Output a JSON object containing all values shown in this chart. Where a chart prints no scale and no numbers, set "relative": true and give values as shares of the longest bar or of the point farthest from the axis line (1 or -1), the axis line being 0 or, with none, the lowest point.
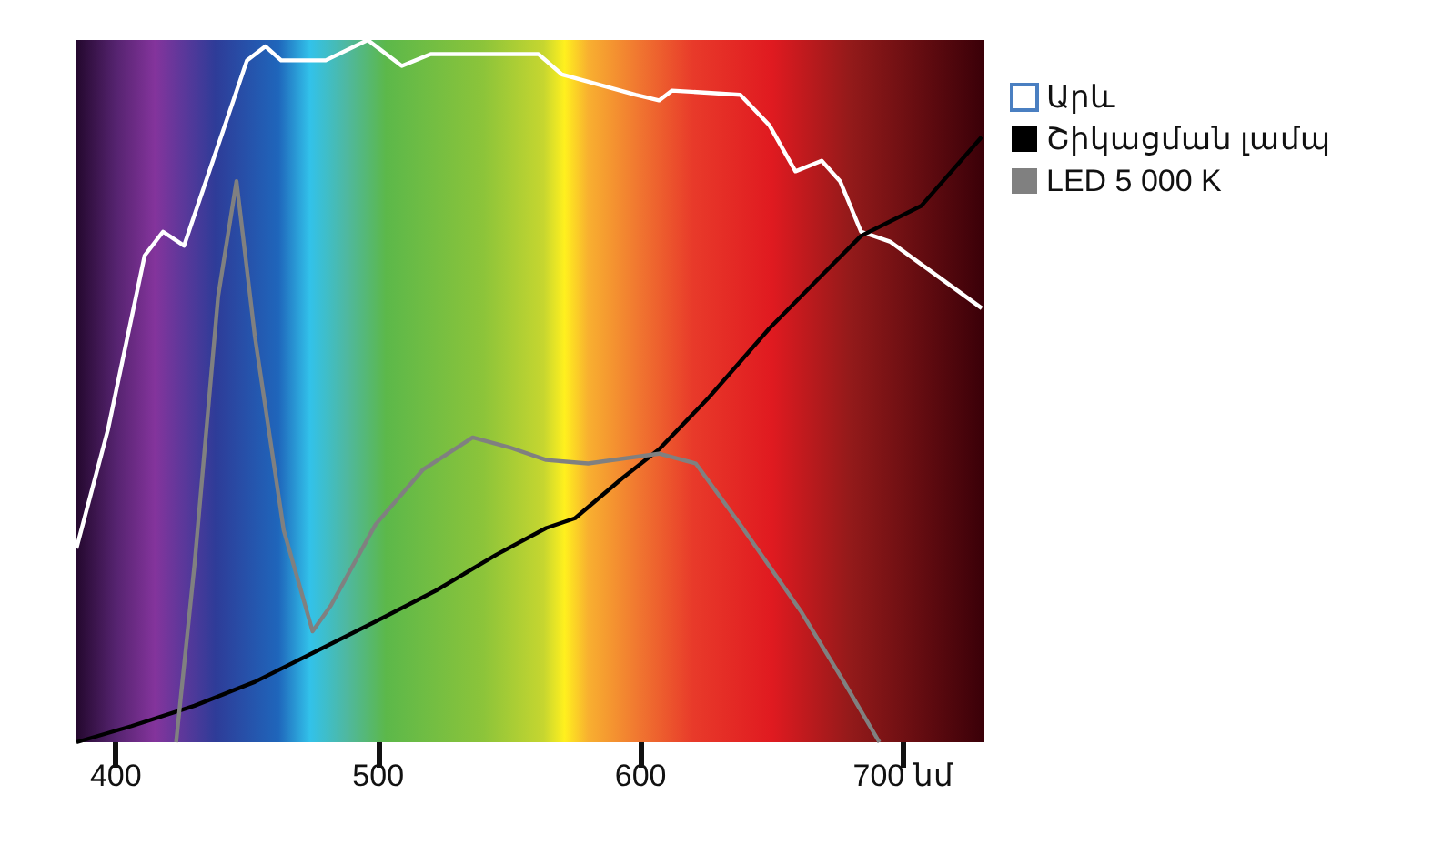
{
  "chart_data": {
    "type": "line",
    "relative": true,
    "xlim": [
      385,
      731
    ],
    "xticks": [
      400,
      500,
      600,
      {
        "value": 700,
        "label": "700 նմ"
      }
    ],
    "legend": "top right",
    "grid": false,
    "marker": "none",
    "line_style": "solid",
    "series": [
      {
        "name": "Արև",
        "color": "#ffffff",
        "x": [
          385,
          397,
          411,
          418,
          426,
          437,
          450,
          457,
          463,
          480,
          496,
          509,
          520,
          561,
          570,
          598,
          607,
          612,
          638,
          649,
          659,
          669,
          676,
          684,
          695,
          730
        ],
        "values": [
          0.276,
          0.445,
          0.693,
          0.727,
          0.707,
          0.828,
          0.971,
          0.991,
          0.971,
          0.971,
          1.0,
          0.963,
          0.98,
          0.98,
          0.951,
          0.922,
          0.914,
          0.928,
          0.922,
          0.879,
          0.813,
          0.828,
          0.799,
          0.727,
          0.713,
          0.618
        ]
      },
      {
        "name": "Շիկացման լամպ",
        "color": "#000000",
        "x": [
          385,
          406,
          430,
          453,
          476,
          499,
          522,
          545,
          564,
          575,
          593,
          607,
          626,
          649,
          668,
          684,
          707,
          730
        ],
        "values": [
          0,
          0.023,
          0.052,
          0.086,
          0.129,
          0.172,
          0.216,
          0.267,
          0.305,
          0.319,
          0.376,
          0.417,
          0.491,
          0.589,
          0.661,
          0.721,
          0.764,
          0.862
        ]
      },
      {
        "name": "LED 5 000 K",
        "color": "#808080",
        "x": [
          423,
          430,
          439,
          446,
          453,
          464,
          475,
          482,
          499,
          517,
          536,
          550,
          564,
          580,
          607,
          621,
          638,
          661,
          677,
          691
        ],
        "values": [
          0,
          0.253,
          0.635,
          0.799,
          0.578,
          0.302,
          0.158,
          0.195,
          0.31,
          0.388,
          0.434,
          0.42,
          0.402,
          0.397,
          0.411,
          0.397,
          0.31,
          0.187,
          0.089,
          0
        ]
      }
    ]
  }
}
